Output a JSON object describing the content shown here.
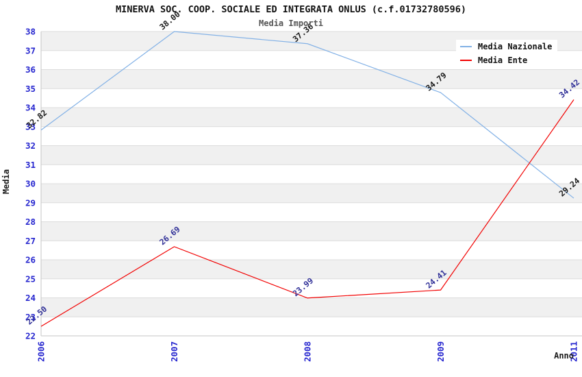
{
  "title": "MINERVA SOC. COOP. SOCIALE ED INTEGRATA ONLUS (c.f.01732780596)",
  "subtitle": "Media Importi",
  "chart_data": {
    "type": "line",
    "categories": [
      "2006",
      "2007",
      "2008",
      "2009",
      "2011"
    ],
    "series": [
      {
        "name": "Media Nazionale",
        "values": [
          32.82,
          38.0,
          37.36,
          34.79,
          29.24
        ],
        "color": "#82b1e6",
        "label_color": "#1a1a1a"
      },
      {
        "name": "Media Ente",
        "values": [
          22.5,
          26.69,
          23.99,
          24.41,
          34.42
        ],
        "color": "#f20000",
        "label_color": "#333399"
      }
    ],
    "xlabel": "Anno",
    "ylabel": "Media",
    "ylim": [
      22,
      38
    ],
    "ytick_step": 1,
    "grid": true,
    "legend_position": "top-right",
    "band_colors": [
      "#f0f0f0",
      "#ffffff"
    ],
    "gridline_color": "#dcdcdc",
    "axis_line_color": "#c6c6c6",
    "tick_label_color": "#2626cf",
    "label_decimals": 2
  }
}
